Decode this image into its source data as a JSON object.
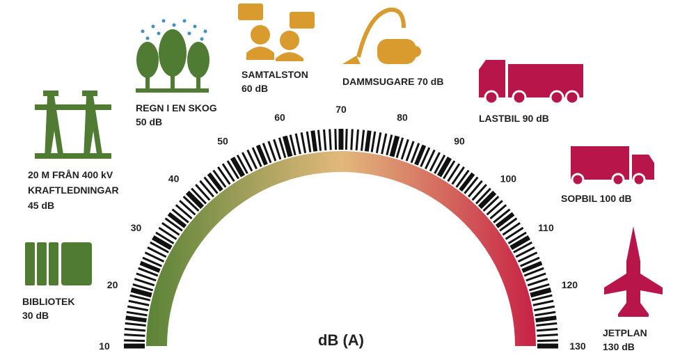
{
  "gauge": {
    "min": 10,
    "max": 130,
    "ticks": [
      10,
      20,
      30,
      40,
      50,
      60,
      70,
      80,
      90,
      100,
      110,
      120,
      130
    ],
    "unit_label": "dB (A)"
  },
  "items": [
    {
      "lines": [
        "20 M FRÅN 400 kV",
        "KRAFTLEDNINGAR",
        "45 dB"
      ]
    },
    {
      "lines": [
        "BIBLIOTEK",
        "30 dB"
      ]
    },
    {
      "lines": [
        "REGN I EN SKOG",
        "50 dB"
      ]
    },
    {
      "lines": [
        "SAMTALSTON",
        "60 dB"
      ]
    },
    {
      "lines": [
        "DAMMSUGARE 70 dB"
      ]
    },
    {
      "lines": [
        "LASTBIL 90 dB"
      ]
    },
    {
      "lines": [
        "SOPBIL 100 dB"
      ]
    },
    {
      "lines": [
        "JETPLAN",
        "130 dB"
      ]
    }
  ]
}
